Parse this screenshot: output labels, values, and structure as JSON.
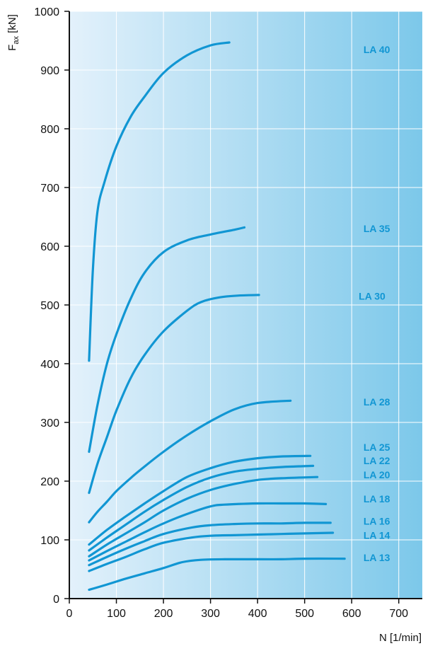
{
  "chart_data": {
    "type": "line",
    "title": "",
    "xlabel": "N [1/min]",
    "ylabel": {
      "main": "F",
      "sub": "ax",
      "unit": " [kN]"
    },
    "xlim": [
      0,
      750
    ],
    "ylim": [
      0,
      1000
    ],
    "x_ticks": [
      0,
      100,
      200,
      300,
      400,
      500,
      600,
      700
    ],
    "y_ticks": [
      0,
      100,
      200,
      300,
      400,
      500,
      600,
      700,
      800,
      900,
      1000
    ],
    "grid": true,
    "legend": "labels at right end of each curve",
    "series": [
      {
        "name": "LA 40",
        "label_at": [
          625,
          935
        ],
        "x": [
          42,
          50,
          60,
          75,
          100,
          130,
          160,
          200,
          250,
          300,
          340
        ],
        "y": [
          405,
          560,
          660,
          710,
          770,
          820,
          855,
          895,
          925,
          942,
          947
        ]
      },
      {
        "name": "LA 35",
        "label_at": [
          625,
          630
        ],
        "x": [
          42,
          60,
          80,
          100,
          130,
          160,
          200,
          250,
          300,
          350,
          372
        ],
        "y": [
          250,
          330,
          400,
          450,
          510,
          555,
          590,
          610,
          620,
          628,
          632
        ]
      },
      {
        "name": "LA 30",
        "label_at": [
          615,
          515
        ],
        "x": [
          42,
          60,
          80,
          100,
          130,
          160,
          200,
          250,
          280,
          320,
          360,
          403
        ],
        "y": [
          180,
          230,
          275,
          320,
          375,
          415,
          455,
          490,
          505,
          513,
          516,
          517
        ]
      },
      {
        "name": "LA 28",
        "label_at": [
          625,
          335
        ],
        "x": [
          42,
          60,
          80,
          100,
          130,
          160,
          200,
          250,
          300,
          350,
          400,
          470
        ],
        "y": [
          130,
          148,
          165,
          183,
          205,
          225,
          250,
          278,
          302,
          322,
          333,
          337
        ]
      },
      {
        "name": "LA 25",
        "label_at": [
          625,
          258
        ],
        "x": [
          42,
          80,
          120,
          160,
          200,
          250,
          300,
          350,
          400,
          450,
          512
        ],
        "y": [
          92,
          117,
          140,
          162,
          183,
          207,
          222,
          233,
          239,
          242,
          243
        ]
      },
      {
        "name": "LA 22",
        "label_at": [
          625,
          235
        ],
        "x": [
          42,
          80,
          120,
          160,
          200,
          250,
          300,
          350,
          400,
          450,
          518
        ],
        "y": [
          82,
          104,
          126,
          148,
          168,
          190,
          206,
          216,
          221,
          224,
          226
        ]
      },
      {
        "name": "LA 20",
        "label_at": [
          625,
          211
        ],
        "x": [
          42,
          80,
          120,
          160,
          200,
          250,
          300,
          350,
          400,
          450,
          527
        ],
        "y": [
          72,
          92,
          111,
          130,
          150,
          170,
          185,
          195,
          202,
          205,
          207
        ]
      },
      {
        "name": "LA 18",
        "label_at": [
          625,
          170
        ],
        "x": [
          42,
          80,
          120,
          160,
          200,
          250,
          300,
          330,
          400,
          450,
          500,
          545
        ],
        "y": [
          65,
          81,
          97,
          113,
          128,
          144,
          157,
          160,
          162,
          162,
          162,
          161
        ]
      },
      {
        "name": "LA 16",
        "label_at": [
          625,
          132
        ],
        "x": [
          42,
          80,
          120,
          160,
          200,
          260,
          300,
          350,
          400,
          450,
          500,
          555
        ],
        "y": [
          57,
          71,
          85,
          98,
          110,
          121,
          125,
          127,
          128,
          128,
          129,
          129
        ]
      },
      {
        "name": "LA 14",
        "label_at": [
          625,
          108
        ],
        "x": [
          42,
          80,
          120,
          160,
          200,
          260,
          300,
          350,
          400,
          450,
          500,
          560
        ],
        "y": [
          47,
          59,
          71,
          84,
          95,
          104,
          107,
          108,
          109,
          110,
          111,
          112
        ]
      },
      {
        "name": "LA 13",
        "label_at": [
          625,
          70
        ],
        "x": [
          42,
          80,
          120,
          160,
          200,
          240,
          280,
          330,
          400,
          450,
          500,
          585
        ],
        "y": [
          15,
          24,
          34,
          43,
          52,
          62,
          66,
          67,
          67,
          67,
          68,
          68
        ]
      }
    ],
    "colors": {
      "curve": "#1196d3",
      "label": "#1196d3",
      "gradient_start": "#e3f1fb",
      "gradient_end": "#7cc8ea",
      "grid": "#ffffff",
      "axis": "#111111"
    }
  }
}
